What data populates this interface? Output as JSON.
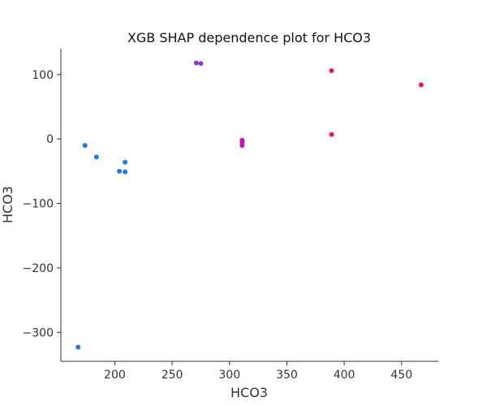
{
  "chart_data": {
    "type": "scatter",
    "title": "XGB SHAP dependence plot for HCO3",
    "xlabel": "HCO3",
    "ylabel": "HCO3",
    "xlim": [
      153,
      482
    ],
    "ylim": [
      -345,
      140
    ],
    "x_ticks": [
      200,
      250,
      300,
      350,
      400,
      450
    ],
    "y_ticks": [
      100,
      0,
      -100,
      -200,
      -300
    ],
    "tick_labels": {
      "x": [
        "200",
        "250",
        "300",
        "350",
        "400",
        "450"
      ],
      "y": [
        "100",
        "0",
        "−100",
        "−200",
        "−300"
      ]
    },
    "grid": false,
    "legend": "none",
    "points": [
      {
        "x": 168,
        "y": -323,
        "color": "#1f7ee6"
      },
      {
        "x": 174,
        "y": -10,
        "color": "#1f7ee6"
      },
      {
        "x": 184,
        "y": -28,
        "color": "#1f7ee6"
      },
      {
        "x": 204,
        "y": -50,
        "color": "#1f7ee6"
      },
      {
        "x": 209,
        "y": -36,
        "color": "#1f7ee6"
      },
      {
        "x": 209,
        "y": -51,
        "color": "#1f7ee6"
      },
      {
        "x": 271,
        "y": 118,
        "color": "#8a3fd1"
      },
      {
        "x": 275,
        "y": 117,
        "color": "#8a3fd1"
      },
      {
        "x": 311,
        "y": -2,
        "color": "#b81ab0"
      },
      {
        "x": 311,
        "y": -5,
        "color": "#b81ab0"
      },
      {
        "x": 311,
        "y": -10,
        "color": "#b81ab0"
      },
      {
        "x": 389,
        "y": 106,
        "color": "#e8136f"
      },
      {
        "x": 389,
        "y": 7,
        "color": "#e8136f"
      },
      {
        "x": 467,
        "y": 84,
        "color": "#f0125e"
      }
    ]
  }
}
